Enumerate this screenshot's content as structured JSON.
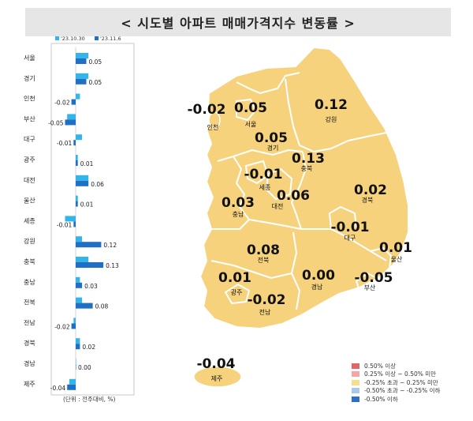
{
  "title": "< 시도별 아파트 매매가격지수 변동률 >",
  "chart_data": [
    {
      "type": "bar",
      "orientation": "horizontal",
      "categories": [
        "서울",
        "경기",
        "인천",
        "부산",
        "대구",
        "광주",
        "대전",
        "울산",
        "세종",
        "강원",
        "충북",
        "충남",
        "전북",
        "전남",
        "경북",
        "경남",
        "제주"
      ],
      "series": [
        {
          "name": "'23.10.30",
          "color": "#33b5ea",
          "values": [
            0.06,
            0.06,
            0.02,
            -0.04,
            0.03,
            0.01,
            0.06,
            0.01,
            -0.05,
            0.03,
            0.06,
            0.02,
            0.03,
            -0.01,
            0.02,
            0.0,
            -0.03
          ]
        },
        {
          "name": "'23.11.6",
          "color": "#1f6fc5",
          "values": [
            0.05,
            0.05,
            -0.02,
            -0.05,
            -0.01,
            0.01,
            0.06,
            0.01,
            -0.01,
            0.12,
            0.13,
            0.03,
            0.08,
            -0.02,
            0.02,
            0.0,
            -0.04
          ]
        }
      ],
      "data_labels": [
        "0.05",
        "0.05",
        "-0.02",
        "-0.05",
        "-0.01",
        "0.01",
        "0.06",
        "0.01",
        "-0.01",
        "0.12",
        "0.13",
        "0.03",
        "0.08",
        "-0.02",
        "0.02",
        "0.00",
        "-0.04"
      ],
      "unit_note": "(단위 : 전주대비, %)",
      "legend_position": "top"
    },
    {
      "type": "choropleth-map",
      "regions": [
        {
          "name": "서울",
          "value": "0.05"
        },
        {
          "name": "인천",
          "value": "-0.02"
        },
        {
          "name": "경기",
          "value": "0.05"
        },
        {
          "name": "강원",
          "value": "0.12"
        },
        {
          "name": "충북",
          "value": "0.13"
        },
        {
          "name": "세종",
          "value": "-0.01"
        },
        {
          "name": "대전",
          "value": "0.06"
        },
        {
          "name": "충남",
          "value": "0.03"
        },
        {
          "name": "경북",
          "value": "0.02"
        },
        {
          "name": "대구",
          "value": "-0.01"
        },
        {
          "name": "울산",
          "value": "0.01"
        },
        {
          "name": "전북",
          "value": "0.08"
        },
        {
          "name": "광주",
          "value": "0.01"
        },
        {
          "name": "전남",
          "value": "-0.02"
        },
        {
          "name": "경남",
          "value": "0.00"
        },
        {
          "name": "부산",
          "value": "-0.05"
        },
        {
          "name": "제주",
          "value": "-0.04"
        }
      ],
      "legend": [
        {
          "label": "0.50% 이상",
          "color": "#e06666"
        },
        {
          "label": "0.25% 이상 ~ 0.50% 미만",
          "color": "#f4a7a7"
        },
        {
          "label": "-0.25% 초과 ~ 0.25% 미만",
          "color": "#f9dc8c"
        },
        {
          "label": "-0.50% 초과 ~ -0.25% 이하",
          "color": "#a9c8ec"
        },
        {
          "label": "-0.50% 이하",
          "color": "#2f6fc4"
        }
      ],
      "region_fill": "#f6d27d"
    }
  ]
}
